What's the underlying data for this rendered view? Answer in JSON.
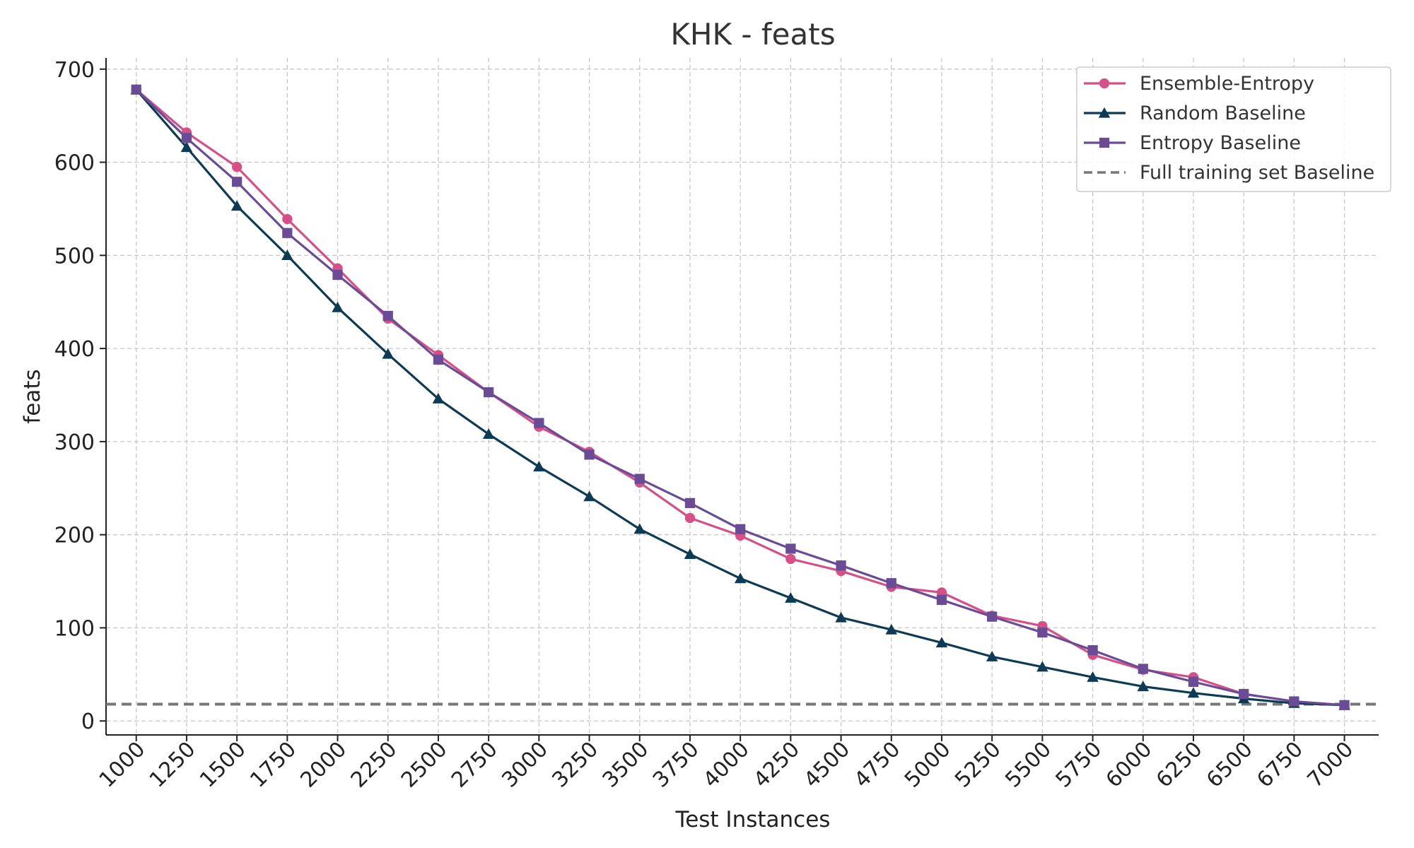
{
  "chart_data": {
    "type": "line",
    "title": "KHK - feats",
    "xlabel": "Test Instances",
    "ylabel": "feats",
    "x": [
      1000,
      1250,
      1500,
      1750,
      2000,
      2250,
      2500,
      2750,
      3000,
      3250,
      3500,
      3750,
      4000,
      4250,
      4500,
      4750,
      5000,
      5250,
      5500,
      5750,
      6000,
      6250,
      6500,
      6750,
      7000
    ],
    "x_tick_labels": [
      "1000",
      "1250",
      "1500",
      "1750",
      "2000",
      "2250",
      "2500",
      "2750",
      "3000",
      "3250",
      "3500",
      "3750",
      "4000",
      "4250",
      "4500",
      "4750",
      "5000",
      "5250",
      "5500",
      "5750",
      "6000",
      "6250",
      "6500",
      "6750",
      "7000"
    ],
    "y_ticks": [
      0,
      100,
      200,
      300,
      400,
      500,
      600,
      700
    ],
    "y_tick_labels": [
      "0",
      "100",
      "200",
      "300",
      "400",
      "500",
      "600",
      "700"
    ],
    "xlim": [
      850,
      7170
    ],
    "ylim": [
      -15,
      712
    ],
    "grid": true,
    "legend_position": "top-right",
    "series": [
      {
        "name": "Ensemble-Entropy",
        "color": "#d64f86",
        "marker": "circle",
        "values": [
          678,
          632,
          595,
          539,
          486,
          432,
          393,
          353,
          316,
          289,
          256,
          218,
          199,
          174,
          161,
          144,
          138,
          113,
          102,
          71,
          55,
          47,
          29,
          21,
          17
        ]
      },
      {
        "name": "Random Baseline",
        "color": "#0d3a55",
        "marker": "triangle",
        "values": [
          678,
          616,
          553,
          500,
          444,
          394,
          346,
          308,
          273,
          241,
          206,
          179,
          153,
          132,
          111,
          98,
          84,
          69,
          58,
          47,
          37,
          30,
          24,
          19,
          17
        ]
      },
      {
        "name": "Entropy Baseline",
        "color": "#6a4c96",
        "marker": "square",
        "values": [
          678,
          626,
          579,
          524,
          479,
          435,
          388,
          353,
          320,
          286,
          260,
          234,
          206,
          185,
          167,
          148,
          130,
          112,
          95,
          76,
          56,
          42,
          29,
          21,
          17
        ]
      }
    ],
    "baseline": {
      "name": "Full training set Baseline",
      "value": 18,
      "color": "#777777",
      "style": "dashed"
    }
  }
}
